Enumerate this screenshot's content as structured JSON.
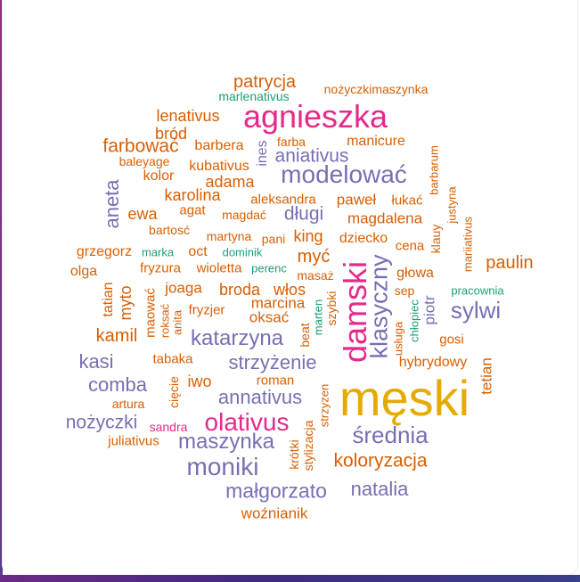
{
  "palette": {
    "orange": "#d95f02",
    "purple": "#7570b3",
    "magenta": "#e7298a",
    "green": "#1b9e77",
    "gold": "#e6ab02"
  },
  "words": {
    "meski": "męski",
    "damski": "damski",
    "agnieszka": "agnieszka",
    "klasyczny": "klasyczny",
    "modelowac": "modelować",
    "olativus": "olativus",
    "srednia": "średnia",
    "moniki": "moniki",
    "sylwi": "sylwi",
    "katarzyna": "katarzyna",
    "malgorzato": "małgorzato",
    "natalia": "natalia",
    "maszynka": "maszynka",
    "strzyzenie": "strzyżenie",
    "annativus": "annativus",
    "aniativus": "aniativus",
    "kasi": "kasi",
    "comba": "comba",
    "nozyczki": "nożyczki",
    "aneta": "aneta",
    "koloryzacja": "koloryzacja",
    "dlugi": "długi",
    "patrycja": "patrycja",
    "farbowac": "farbować",
    "paulin": "paulin",
    "lenativus": "lenativus",
    "kamil": "kamil",
    "myc": "myć",
    "king": "king",
    "ewa": "ewa",
    "karolina": "karolina",
    "broda": "broda",
    "wlos": "włos",
    "joaga": "joaga",
    "myto": "myto",
    "iwo": "iwo",
    "adama": "adama",
    "barbera": "barbera",
    "magdalena": "magdalena",
    "pawel": "paweł",
    "oksac": "oksać",
    "marcina": "marcina",
    "piotr": "piotr",
    "tetian": "tetian",
    "wozniank": "woźnianik",
    "hybrydowy": "hybrydowy",
    "brod": "bród",
    "nozyczkimaszynka": "nożyczkimaszynka",
    "marlenativus": "marlenativus",
    "manicure": "manicure",
    "farba": "farba",
    "ines": "ines",
    "baleyage": "baleyage",
    "kolor": "kolor",
    "kubativus": "kubativus",
    "aleksandra": "aleksandra",
    "lukac": "łukać",
    "agat": "agat",
    "magdac": "magdać",
    "bartosc": "bartosć",
    "martyna": "martyna",
    "pani": "pani",
    "dziecko": "dziecko",
    "cena": "cena",
    "grzegorz": "grzegorz",
    "marka": "marka",
    "oct": "oct",
    "dominik": "dominik",
    "olga": "olga",
    "fryzura": "fryzura",
    "wioletta": "wioletta",
    "perenc": "perenc",
    "masaz": "masaż",
    "glowa": "głowa",
    "sep": "sep",
    "pracownia": "pracownia",
    "tatian": "tatian",
    "maowac": "maować",
    "roksac": "roksać",
    "anita": "anita",
    "fryzjer": "fryzjer",
    "marten": "marten",
    "szybki": "szybki",
    "beat": "beat",
    "chlopiec": "chłopiec",
    "usluga": "usługa",
    "gosi": "gosi",
    "tabaka": "tabaka",
    "ciecie": "cięcie",
    "roman": "roman",
    "artura": "artura",
    "strzyzen": "strzyzen",
    "stylizacja": "stylizacja",
    "krotki": "krótki",
    "sandra": "sandra",
    "juliativus": "juliativus",
    "barbarum": "barbarum",
    "justyna": "justyna",
    "mariiativus": "mariiativus",
    "klauy": "klauy"
  }
}
